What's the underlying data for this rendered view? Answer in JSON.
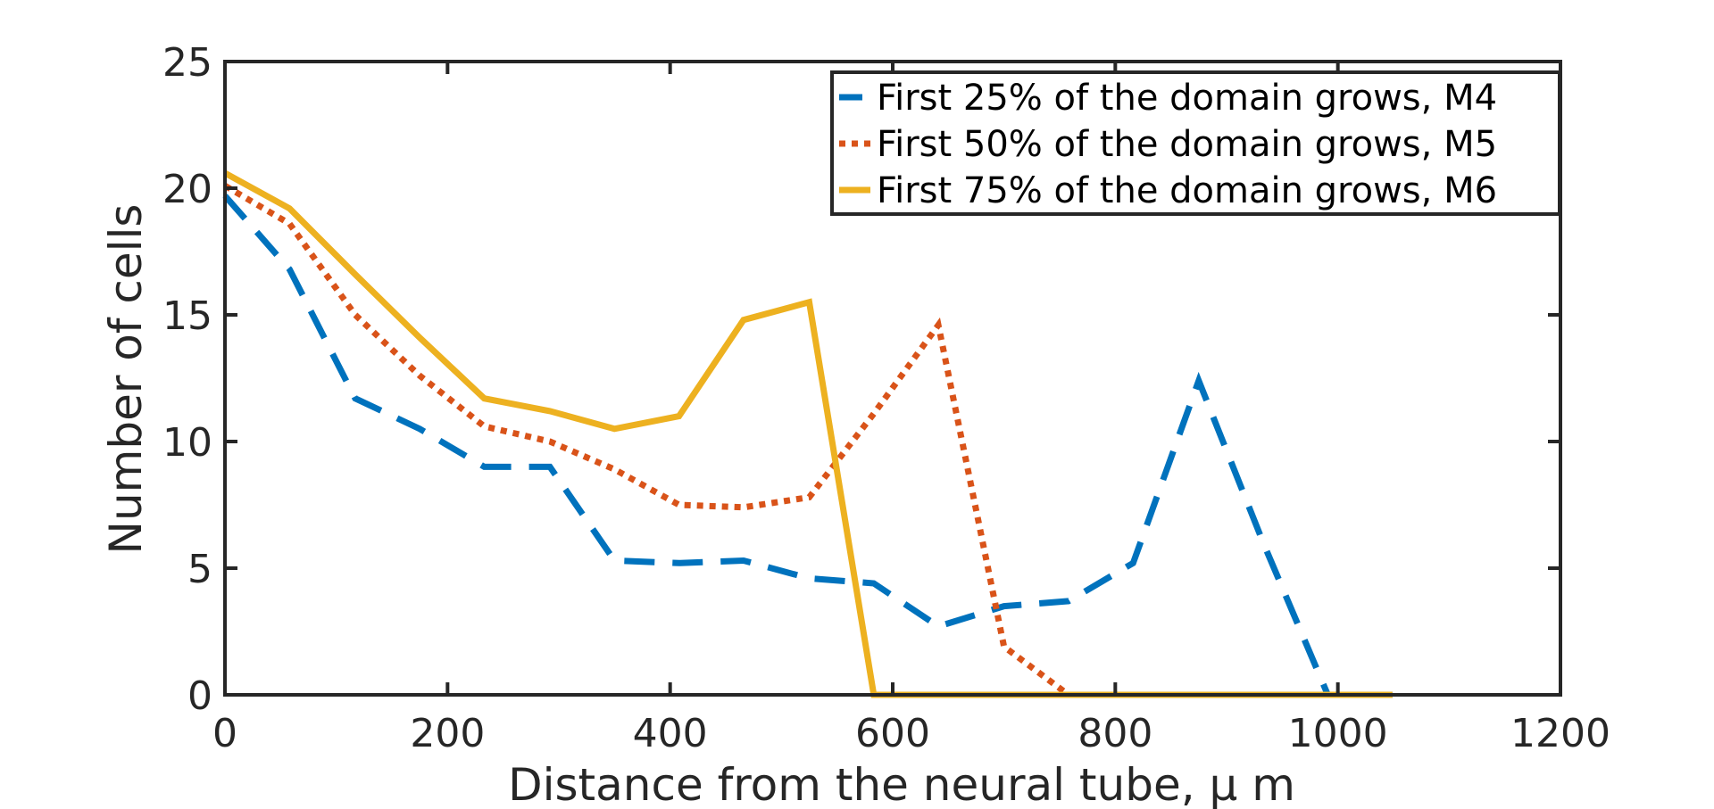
{
  "chart_data": {
    "type": "line",
    "xlabel": "Distance from the neural tube, μ m",
    "ylabel": "Number of cells",
    "xlim": [
      0,
      1200
    ],
    "ylim": [
      0,
      25
    ],
    "x_ticks": [
      "0",
      "200",
      "400",
      "600",
      "800",
      "1000",
      "1200"
    ],
    "y_ticks": [
      "0",
      "5",
      "10",
      "15",
      "20",
      "25"
    ],
    "grid": false,
    "legend_position": "top-right",
    "series": [
      {
        "name": "First 25% of the domain grows, M4",
        "color": "#0072BD",
        "style": "dashed",
        "x": [
          0,
          58,
          117,
          175,
          233,
          292,
          350,
          408,
          466,
          525,
          583,
          641,
          700,
          758,
          816,
          875,
          933,
          991,
          1049
        ],
        "y": [
          19.7,
          16.8,
          11.7,
          10.5,
          9.0,
          9.0,
          5.3,
          5.2,
          5.3,
          4.6,
          4.4,
          2.7,
          3.5,
          3.7,
          5.2,
          12.4,
          6.0,
          0,
          0
        ]
      },
      {
        "name": "First 50% of the domain grows, M5",
        "color": "#D95319",
        "style": "dotted",
        "x": [
          0,
          58,
          117,
          175,
          233,
          292,
          350,
          408,
          466,
          525,
          583,
          641,
          700,
          758,
          816,
          875,
          933,
          991,
          1049
        ],
        "y": [
          20.1,
          18.6,
          15.0,
          12.6,
          10.6,
          10.0,
          8.9,
          7.5,
          7.4,
          7.8,
          11.1,
          14.6,
          1.9,
          0,
          0,
          0,
          0,
          0,
          0
        ]
      },
      {
        "name": "First 75% of the domain grows, M6",
        "color": "#EDB120",
        "style": "solid",
        "x": [
          0,
          58,
          117,
          175,
          233,
          292,
          350,
          408,
          466,
          525,
          583,
          641,
          700,
          758,
          816,
          875,
          933,
          991,
          1049
        ],
        "y": [
          20.6,
          19.2,
          16.6,
          14.1,
          11.7,
          11.2,
          10.5,
          11.0,
          14.8,
          15.5,
          0,
          0,
          0,
          0,
          0,
          0,
          0,
          0,
          0
        ]
      }
    ]
  }
}
